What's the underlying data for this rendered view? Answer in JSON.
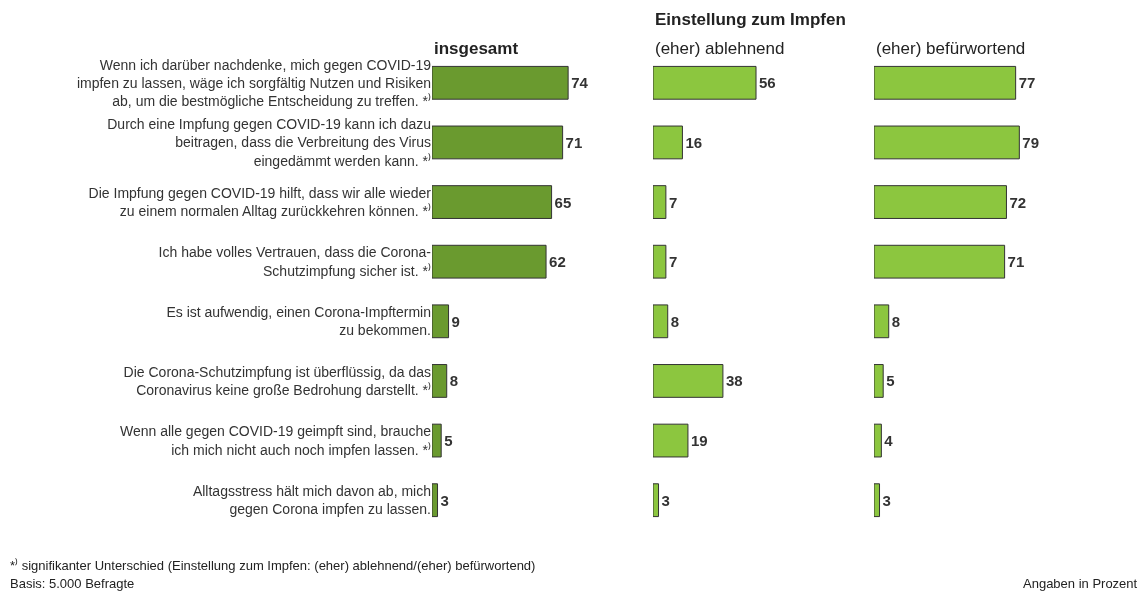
{
  "chart_data": [
    {
      "type": "bar",
      "orientation": "horizontal",
      "title": "insgesamt",
      "categories": [
        "Wenn ich darüber nachdenke, mich gegen COVID-19\nimpfen zu lassen, wäge ich sorgfältig Nutzen und Risiken\nab, um die bestmögliche Entscheidung zu treffen. *⁾",
        "Durch eine Impfung gegen COVID-19 kann ich dazu\nbeitragen, dass die Verbreitung des Virus\neingedämmt werden kann. *⁾",
        "Die Impfung gegen COVID-19 hilft, dass wir alle wieder\nzu einem normalen Alltag zurückkehren können. *⁾",
        "Ich habe volles Vertrauen, dass die Corona-\nSchutzimpfung sicher ist. *⁾",
        "Es ist aufwendig, einen Corona-Impftermin\nzu bekommen.",
        "Die Corona-Schutzimpfung ist überflüssig, da das\nCoronavirus keine große Bedrohung darstellt. *⁾",
        "Wenn alle gegen COVID-19 geimpft sind, brauche\nich mich nicht auch noch impfen lassen. *⁾",
        "Alltagsstress hält mich davon ab, mich\ngegen Corona impfen zu lassen."
      ],
      "values": [
        74,
        71,
        65,
        62,
        9,
        8,
        5,
        3
      ],
      "color": "#6a9a2f",
      "data_labels": true,
      "tick_labels": "y",
      "annotations": [
        "*⁾ signifikanter Unterschied (Einstellung zum Impfen: (eher) ablehnend/(eher) befürwortend)",
        "Basis: 5.000 Befragte"
      ]
    },
    {
      "type": "bar",
      "orientation": "horizontal",
      "title": "(eher) ablehnend",
      "values": [
        56,
        16,
        7,
        7,
        8,
        38,
        19,
        3
      ],
      "color": "#8cc63f",
      "data_labels": true,
      "tick_labels": false,
      "annotations": [
        "Einstellung zum Impfen"
      ]
    },
    {
      "type": "bar",
      "orientation": "horizontal",
      "title": "(eher) befürwortend",
      "values": [
        77,
        79,
        72,
        71,
        8,
        5,
        4,
        3
      ],
      "color": "#8cc63f",
      "data_labels": true,
      "tick_labels": false,
      "annotations": [
        "Angaben in Prozent"
      ]
    }
  ]
}
